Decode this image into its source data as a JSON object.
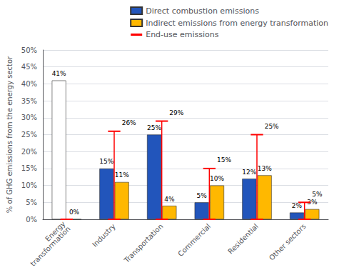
{
  "chart_data": {
    "type": "bar",
    "categories": [
      "Energy\ntransformation",
      "Industry",
      "Transportation",
      "Commercial",
      "Residential",
      "Other sectors"
    ],
    "ylabel": "% of GHG emissions from the energy sector",
    "ylim": [
      0,
      50
    ],
    "yticks": [
      {
        "value": 0,
        "label": "0%"
      },
      {
        "value": 5,
        "label": "5%"
      },
      {
        "value": 10,
        "label": "10%"
      },
      {
        "value": 15,
        "label": "15%"
      },
      {
        "value": 20,
        "label": "20%"
      },
      {
        "value": 25,
        "label": "25%"
      },
      {
        "value": 30,
        "label": "30%"
      },
      {
        "value": 35,
        "label": "35%"
      },
      {
        "value": 40,
        "label": "40%"
      },
      {
        "value": 45,
        "label": "45%"
      },
      {
        "value": 50,
        "label": "50%"
      }
    ],
    "grid": true,
    "legend": "top-right",
    "data_labels": true,
    "series": [
      {
        "name": "Direct combustion emissions",
        "type": "bar",
        "color": "#2255BB",
        "colors": [
          "#FFFFFF",
          "#2255BB",
          "#2255BB",
          "#2255BB",
          "#2255BB",
          "#2255BB"
        ],
        "values": [
          41,
          15,
          25,
          5,
          12,
          2
        ],
        "value_labels": [
          "41%",
          "15%",
          "25%",
          "5%",
          "12%",
          "2%"
        ]
      },
      {
        "name": "Indirect emissions from energy transformation",
        "type": "bar",
        "color": "#FFB800",
        "values": [
          0,
          11,
          4,
          10,
          13,
          3
        ],
        "value_labels": [
          "0%",
          "11%",
          "4%",
          "10%",
          "13%",
          "3%"
        ]
      },
      {
        "name": "End-use emissions",
        "type": "errorbar",
        "color": "#FF0000",
        "values": [
          0,
          26,
          29,
          15,
          25,
          5
        ],
        "value_labels": [
          null,
          "26%",
          "29%",
          "15%",
          "25%",
          "5%"
        ]
      }
    ]
  }
}
